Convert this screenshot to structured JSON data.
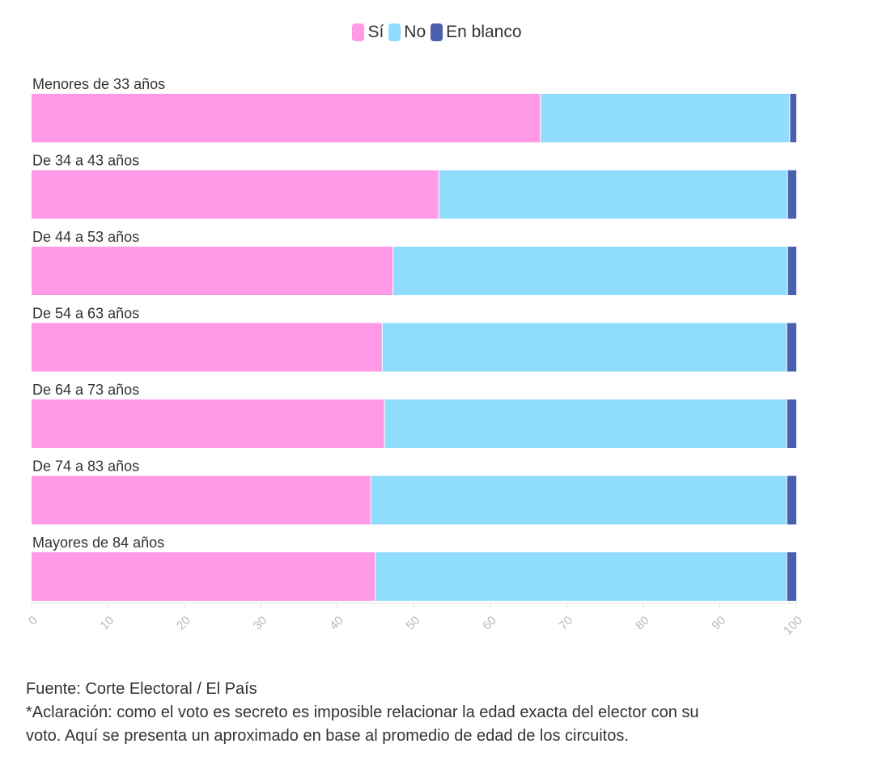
{
  "chart_data": {
    "type": "bar",
    "orientation": "horizontal",
    "stacked": true,
    "categories": [
      "Menores de 33 años",
      "De 34 a 43 años",
      "De 44 a 53 años",
      "De 54 a 63 años",
      "De 64 a 73 años",
      "De 74 a 83 años",
      "Mayores de 84 años"
    ],
    "series": [
      {
        "name": "Sí",
        "color": "#ff99e8",
        "values": [
          66.6,
          53.3,
          47.3,
          45.9,
          46.2,
          44.4,
          45.0
        ]
      },
      {
        "name": "No",
        "color": "#8fdcfc",
        "values": [
          32.6,
          45.6,
          51.6,
          52.9,
          52.6,
          54.4,
          53.8
        ]
      },
      {
        "name": "En blanco",
        "color": "#4a5fad",
        "values": [
          0.8,
          1.1,
          1.1,
          1.2,
          1.2,
          1.2,
          1.2
        ]
      }
    ],
    "xlim": [
      0,
      100
    ],
    "xticks": [
      "0",
      "10",
      "20",
      "30",
      "40",
      "50",
      "60",
      "70",
      "80",
      "90",
      "100"
    ],
    "legend_position": "top-center",
    "grid": false
  },
  "footer": {
    "source": "Fuente: Corte Electoral / El País",
    "note_line1": "*Aclaración: como el voto es secreto es imposible relacionar la edad exacta del elector con su",
    "note_line2": "voto. Aquí se presenta un aproximado en base al promedio de edad de los circuitos."
  }
}
